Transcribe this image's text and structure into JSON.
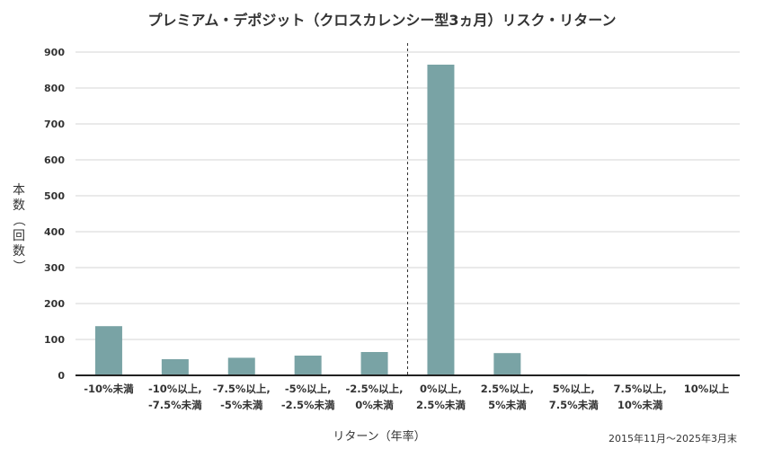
{
  "chart_data": {
    "type": "bar",
    "title": "プレミアム・デポジット（クロスカレンシー型3ヵ月）リスク・リターン",
    "xlabel": "リターン（年率）",
    "ylabel_lines": [
      "本",
      "数",
      "（",
      "回",
      "数",
      "）"
    ],
    "note": "2015年11月〜2025年3月末",
    "ylim": [
      0,
      900
    ],
    "y_ticks": [
      0,
      100,
      200,
      300,
      400,
      500,
      600,
      700,
      800,
      900
    ],
    "grid": true,
    "bar_color": "#79a3a5",
    "divider_after_index": 4,
    "categories": [
      [
        "-10%未満"
      ],
      [
        "-10%以上,",
        "-7.5%未満"
      ],
      [
        "-7.5%以上,",
        "-5%未満"
      ],
      [
        "-5%以上,",
        "-2.5%未満"
      ],
      [
        "-2.5%以上,",
        "0%未満"
      ],
      [
        "0%以上,",
        "2.5%未満"
      ],
      [
        "2.5%以上,",
        "5%未満"
      ],
      [
        "5%以上,",
        "7.5%未満"
      ],
      [
        "7.5%以上,",
        "10%未満"
      ],
      [
        "10%以上"
      ]
    ],
    "values": [
      137,
      45,
      49,
      55,
      65,
      865,
      62,
      3,
      0,
      0
    ]
  }
}
